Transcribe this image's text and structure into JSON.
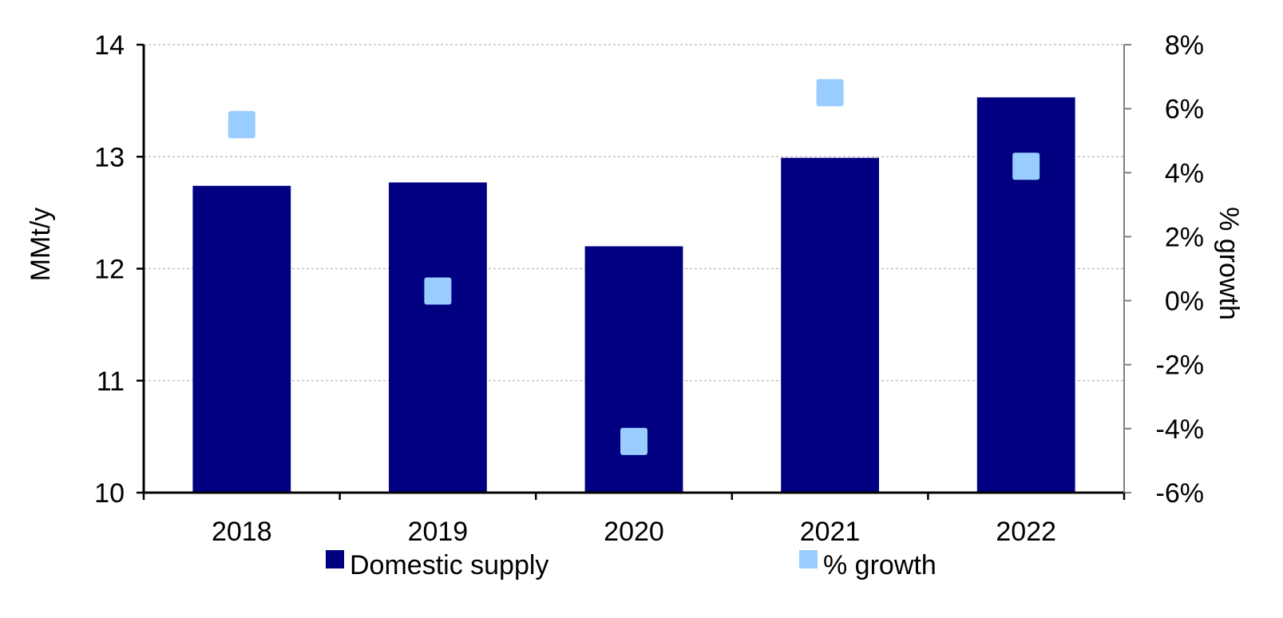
{
  "chart_data": {
    "type": "bar",
    "categories": [
      "2018",
      "2019",
      "2020",
      "2021",
      "2022"
    ],
    "series": [
      {
        "name": "Domestic supply",
        "type": "bar",
        "axis": "left",
        "color": "#000080",
        "values": [
          12.74,
          12.77,
          12.2,
          12.99,
          13.53
        ]
      },
      {
        "name": "% growth",
        "type": "scatter",
        "axis": "right",
        "color": "#99CCFF",
        "values": [
          5.5,
          0.3,
          -4.4,
          6.5,
          4.2
        ]
      }
    ],
    "left_axis": {
      "label": "MMt/y",
      "min": 10,
      "max": 14,
      "ticks": [
        {
          "value": 10,
          "label": "10"
        },
        {
          "value": 11,
          "label": "11"
        },
        {
          "value": 12,
          "label": "12"
        },
        {
          "value": 13,
          "label": "13"
        },
        {
          "value": 14,
          "label": "14"
        }
      ]
    },
    "right_axis": {
      "label": "% growth",
      "min": -6,
      "max": 8,
      "ticks": [
        {
          "value": -6,
          "label": "-6%"
        },
        {
          "value": -4,
          "label": "-4%"
        },
        {
          "value": -2,
          "label": "-2%"
        },
        {
          "value": 0,
          "label": "0%"
        },
        {
          "value": 2,
          "label": "2%"
        },
        {
          "value": 4,
          "label": "4%"
        },
        {
          "value": 6,
          "label": "6%"
        },
        {
          "value": 8,
          "label": "8%"
        }
      ]
    },
    "grid": "horizontal dashed",
    "legend": "bottom"
  }
}
